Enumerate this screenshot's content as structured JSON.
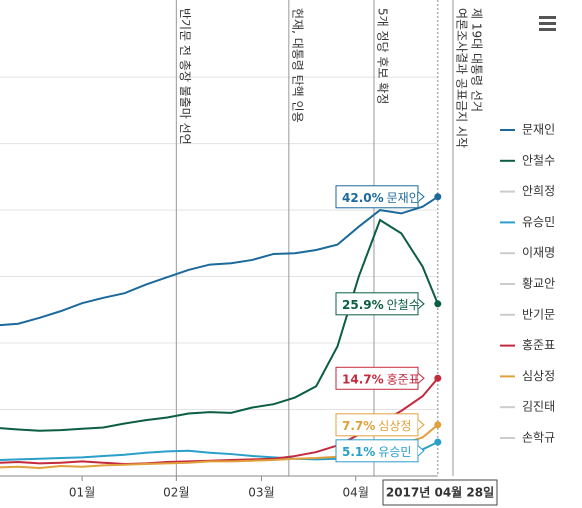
{
  "chart_data": {
    "type": "line",
    "x": [
      -27,
      -21,
      -14,
      -7,
      0,
      7,
      14,
      21,
      28,
      35,
      42,
      49,
      56,
      63,
      70,
      77,
      84,
      91,
      98,
      105,
      112,
      117
    ],
    "xlim": [
      -27,
      124.3
    ],
    "xticks": [
      {
        "value": 0,
        "label": "01월"
      },
      {
        "value": 31,
        "label": "02월"
      },
      {
        "value": 59,
        "label": "03월"
      },
      {
        "value": 90,
        "label": "04월"
      }
    ],
    "ylim": [
      0,
      71.6
    ],
    "yticks": [
      10,
      20,
      30,
      40,
      50,
      60
    ],
    "grid": true,
    "cursor_label": "2017년 04월 28일",
    "annotations": [
      {
        "x": 31,
        "lines": [
          "반기문 전 총장 불출마 선언"
        ]
      },
      {
        "x": 68,
        "lines": [
          "헌재, 대통령 탄핵 인용"
        ]
      },
      {
        "x": 96,
        "lines": [
          "5개 정당 후보 확정"
        ]
      },
      {
        "x": 122,
        "lines": [
          "여론조사결과 공표금지 시작",
          "제 19대 대통령 선거"
        ]
      }
    ],
    "series": [
      {
        "name": "문재인",
        "color": "#1c6a9b",
        "values": [
          22.7,
          22.9,
          23.8,
          24.8,
          26.0,
          26.8,
          27.5,
          28.8,
          29.9,
          31.0,
          31.8,
          32.0,
          32.5,
          33.4,
          33.5,
          34.0,
          34.8,
          37.5,
          40.0,
          39.5,
          40.5,
          42.0
        ],
        "value_labels": [
          null,
          null,
          null,
          null,
          null,
          null,
          null,
          null,
          null,
          null,
          null,
          null,
          null,
          null,
          null,
          null,
          null,
          null,
          null,
          null,
          null,
          "42.0%"
        ]
      },
      {
        "name": "안철수",
        "color": "#0b5e40",
        "values": [
          7.2,
          7.0,
          6.8,
          6.9,
          7.1,
          7.3,
          7.9,
          8.4,
          8.8,
          9.4,
          9.6,
          9.5,
          10.3,
          10.8,
          11.8,
          13.5,
          19.5,
          30.0,
          38.5,
          36.5,
          31.5,
          25.9
        ],
        "value_labels": [
          null,
          null,
          null,
          null,
          null,
          null,
          null,
          null,
          null,
          null,
          null,
          null,
          null,
          null,
          null,
          null,
          null,
          null,
          null,
          null,
          null,
          "25.9%"
        ]
      },
      {
        "name": "안희정",
        "color": "#cccccc",
        "visible": false
      },
      {
        "name": "유승민",
        "color": "#2a9fc9",
        "values": [
          2.4,
          2.5,
          2.6,
          2.7,
          2.8,
          3.0,
          3.2,
          3.5,
          3.7,
          3.8,
          3.5,
          3.3,
          3.0,
          2.8,
          2.6,
          2.5,
          2.6,
          2.8,
          3.0,
          3.3,
          4.0,
          5.1
        ],
        "value_labels": [
          null,
          null,
          null,
          null,
          null,
          null,
          null,
          null,
          null,
          null,
          null,
          null,
          null,
          null,
          null,
          null,
          null,
          null,
          null,
          null,
          null,
          "5.1%"
        ]
      },
      {
        "name": "이재명",
        "color": "#cccccc",
        "visible": false
      },
      {
        "name": "황교안",
        "color": "#cccccc",
        "visible": false
      },
      {
        "name": "반기문",
        "color": "#cccccc",
        "visible": false
      },
      {
        "name": "홍준표",
        "color": "#c42a3e",
        "values": [
          2.0,
          2.1,
          1.9,
          2.0,
          2.2,
          2.0,
          1.8,
          1.9,
          2.1,
          2.2,
          2.3,
          2.4,
          2.5,
          2.6,
          3.0,
          3.6,
          4.6,
          6.2,
          8.0,
          9.8,
          12.0,
          14.7
        ],
        "value_labels": [
          null,
          null,
          null,
          null,
          null,
          null,
          null,
          null,
          null,
          null,
          null,
          null,
          null,
          null,
          null,
          null,
          null,
          null,
          null,
          null,
          null,
          "14.7%"
        ]
      },
      {
        "name": "심상정",
        "color": "#e0a13c",
        "values": [
          1.3,
          1.4,
          1.2,
          1.5,
          1.4,
          1.6,
          1.7,
          1.8,
          1.9,
          2.0,
          2.2,
          2.2,
          2.3,
          2.4,
          2.6,
          2.7,
          2.9,
          3.3,
          4.0,
          4.8,
          5.8,
          7.7
        ],
        "value_labels": [
          null,
          null,
          null,
          null,
          null,
          null,
          null,
          null,
          null,
          null,
          null,
          null,
          null,
          null,
          null,
          null,
          null,
          null,
          null,
          null,
          null,
          "7.7%"
        ]
      },
      {
        "name": "김진태",
        "color": "#cccccc",
        "visible": false
      },
      {
        "name": "손학규",
        "color": "#cccccc",
        "visible": false
      }
    ]
  }
}
